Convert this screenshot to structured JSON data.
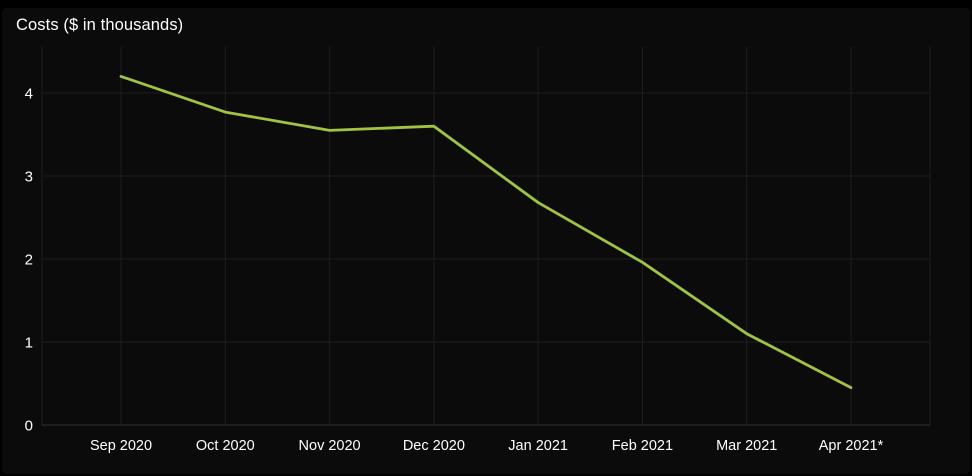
{
  "title": "Costs ($ in thousands)",
  "colors": {
    "background": "#000000",
    "panel": "#0b0b0b",
    "grid": "#1e1e1e",
    "axis": "#323232",
    "text": "#ffffff",
    "line": "#a0c43f"
  },
  "chart_data": {
    "type": "line",
    "title": "Costs ($ in thousands)",
    "categories": [
      "Sep 2020",
      "Oct 2020",
      "Nov 2020",
      "Dec 2020",
      "Jan 2021",
      "Feb 2021",
      "Mar 2021",
      "Apr 2021*"
    ],
    "series": [
      {
        "name": "Costs",
        "values": [
          4.2,
          3.77,
          3.55,
          3.6,
          2.68,
          1.96,
          1.1,
          0.45
        ]
      }
    ],
    "xlabel": "",
    "ylabel": "",
    "y_ticks": [
      0,
      1,
      2,
      3,
      4
    ],
    "ylim": [
      0,
      4.55
    ],
    "grid": true,
    "legend": "none"
  }
}
